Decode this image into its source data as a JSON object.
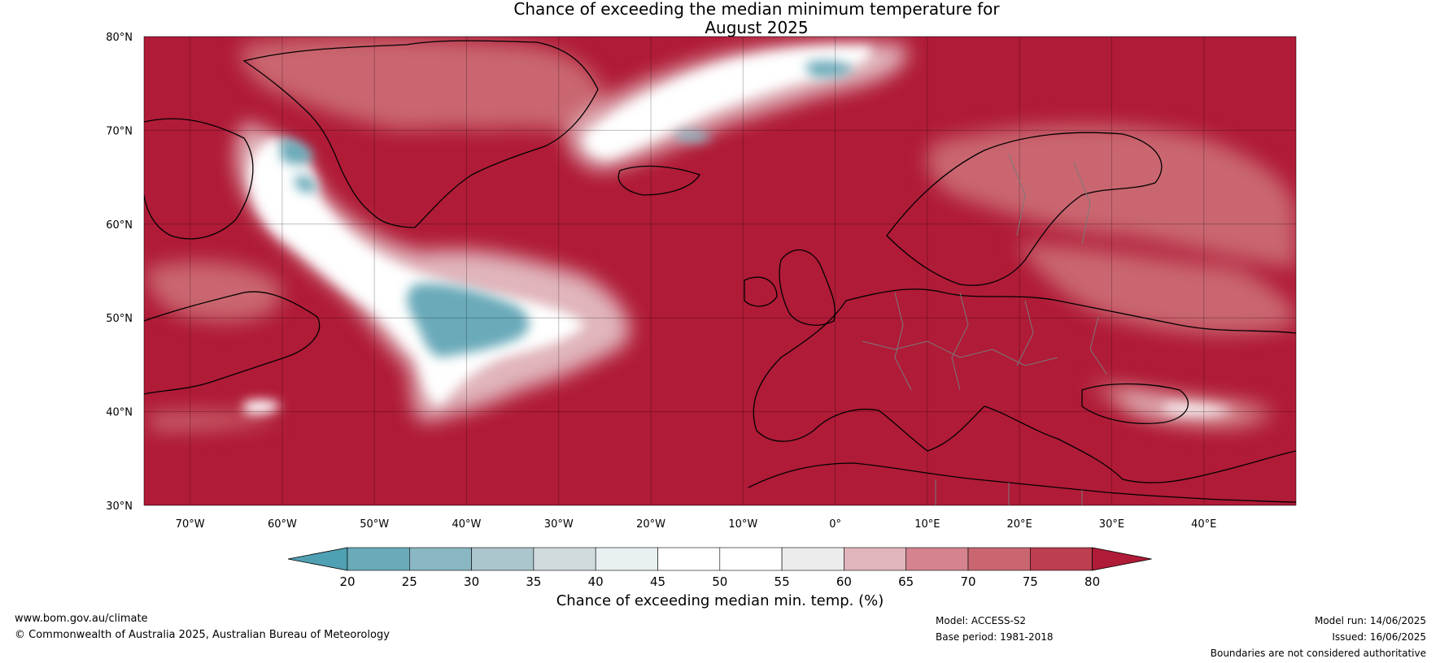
{
  "title": {
    "line1": "Chance of exceeding the median minimum temperature for",
    "line2": "August 2025"
  },
  "map": {
    "lat_ticks": [
      "80°N",
      "70°N",
      "60°N",
      "50°N",
      "40°N",
      "30°N"
    ],
    "lon_ticks": [
      "70°W",
      "60°W",
      "50°W",
      "40°W",
      "30°W",
      "20°W",
      "10°W",
      "0°",
      "10°E",
      "20°E",
      "30°E",
      "40°E"
    ],
    "lat_range": [
      30,
      80
    ],
    "lon_range": [
      -75,
      50
    ],
    "background_color": "#b01b37"
  },
  "colorbar": {
    "ticks": [
      "20",
      "25",
      "30",
      "35",
      "40",
      "45",
      "50",
      "55",
      "60",
      "65",
      "70",
      "75",
      "80"
    ],
    "colors": [
      "#4fa0b2",
      "#6aaab9",
      "#89b7c3",
      "#aac5cb",
      "#cfdadd",
      "#e8f0f1",
      "#ffffff",
      "#ffffff",
      "#ececec",
      "#e0b5bb",
      "#d4838f",
      "#c96670",
      "#bc3e4f",
      "#b01b37"
    ],
    "label": "Chance of exceeding median min. temp. (%)"
  },
  "footer": {
    "url": "www.bom.gov.au/climate",
    "copyright": "© Commonwealth of Australia 2025, Australian Bureau of Meteorology",
    "model": "Model: ACCESS-S2",
    "base_period": "Base period: 1981-2018",
    "model_run": "Model run: 14/06/2025",
    "issued": "Issued: 16/06/2025",
    "disclaimer": "Boundaries are not considered authoritative"
  }
}
